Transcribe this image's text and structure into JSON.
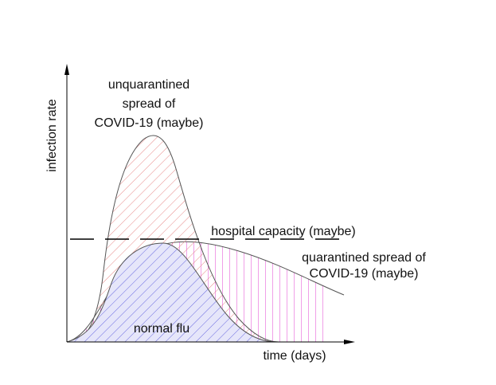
{
  "labels": {
    "y_axis": "infection rate",
    "x_axis": "time (days)",
    "unquarantined_line1": "unquarantined",
    "unquarantined_line2": "spread of",
    "unquarantined_line3": "COVID-19 (maybe)",
    "capacity": "hospital capacity (maybe)",
    "quarantined_line1": "quarantined spread of",
    "quarantined_line2": "COVID-19 (maybe)",
    "flu": "normal flu"
  },
  "colors": {
    "unquarantined_hatch": "#e88a8a",
    "quarantined_hatch": "#e040d0",
    "flu_hatch": "#6a6ae0",
    "flu_fill": "#e6e6fa",
    "outline": "#555555",
    "axis": "#000000"
  }
}
